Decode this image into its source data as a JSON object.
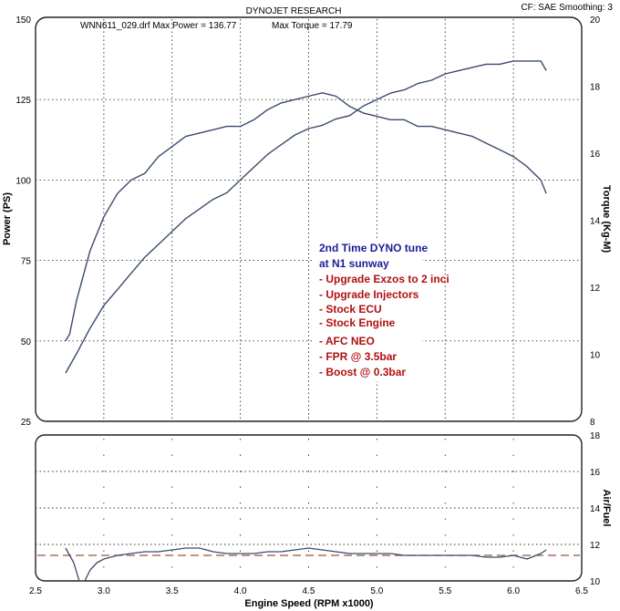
{
  "header": {
    "title": "DYNOJET RESEARCH",
    "cf": "CF: SAE  Smoothing: 3",
    "file_info": "WNN611_029.drf Max Power = 136.77",
    "torque_info": "Max Torque = 17.79"
  },
  "annotation": {
    "lines": [
      {
        "text": "2nd Time DYNO tune",
        "color": "#1c1c9a"
      },
      {
        "text": "at N1 sunway",
        "color": "#1c1c9a"
      },
      {
        "text": "- Upgrade Exzos to 2 inci",
        "color": "#b01010"
      },
      {
        "text": "- Upgrade Injectors",
        "color": "#b01010"
      },
      {
        "text": "- Stock ECU",
        "color": "#b01010"
      },
      {
        "text": "- Stock Engine",
        "color": "#b01010"
      },
      {
        "text": "- AFC NEO",
        "color": "#b01010"
      },
      {
        "text": "- FPR @ 3.5bar",
        "color": "#b01010"
      },
      {
        "text": "- Boost @ 0.3bar",
        "color": "#b01010"
      }
    ]
  },
  "chart_data": [
    {
      "type": "line",
      "x_label": "Engine Speed (RPM x1000)",
      "x_ticks": [
        "2.5",
        "3.0",
        "3.5",
        "4.0",
        "4.5",
        "5.0",
        "5.5",
        "6.0",
        "6.5"
      ],
      "xlim": [
        2.5,
        6.5
      ],
      "ylabel_left": "Power (PS)",
      "yticks_left": [
        "25",
        "50",
        "75",
        "100",
        "125",
        "150"
      ],
      "ylim_left": [
        25,
        150
      ],
      "ylabel_right": "Torque (Kg-M)",
      "yticks_right": [
        "8",
        "10",
        "12",
        "14",
        "16",
        "18",
        "20"
      ],
      "ylim_right": [
        8,
        20
      ],
      "grid": true,
      "line_color": "#3a4a6e",
      "series": [
        {
          "axis": "left",
          "x": [
            2.72,
            2.8,
            2.9,
            3.0,
            3.1,
            3.2,
            3.3,
            3.4,
            3.5,
            3.6,
            3.7,
            3.8,
            3.9,
            4.0,
            4.1,
            4.2,
            4.3,
            4.4,
            4.5,
            4.6,
            4.7,
            4.8,
            4.9,
            5.0,
            5.1,
            5.2,
            5.3,
            5.4,
            5.5,
            5.6,
            5.7,
            5.8,
            5.9,
            6.0,
            6.1,
            6.2,
            6.24
          ],
          "y": [
            40,
            46,
            54,
            61,
            66,
            71,
            76,
            80,
            84,
            88,
            91,
            94,
            96,
            100,
            104,
            108,
            111,
            114,
            116,
            117,
            119,
            120,
            123,
            125,
            127,
            128,
            130,
            131,
            133,
            134,
            135,
            136,
            136,
            137,
            137,
            137,
            134
          ]
        },
        {
          "axis": "right",
          "x": [
            2.72,
            2.75,
            2.8,
            2.9,
            3.0,
            3.1,
            3.2,
            3.3,
            3.4,
            3.5,
            3.6,
            3.7,
            3.8,
            3.9,
            4.0,
            4.1,
            4.2,
            4.3,
            4.4,
            4.5,
            4.6,
            4.7,
            4.8,
            4.9,
            5.0,
            5.1,
            5.2,
            5.3,
            5.4,
            5.5,
            5.6,
            5.7,
            5.8,
            5.9,
            6.0,
            6.1,
            6.2,
            6.24
          ],
          "y": [
            10.4,
            10.6,
            11.6,
            13.1,
            14.1,
            14.8,
            15.2,
            15.4,
            15.9,
            16.2,
            16.5,
            16.6,
            16.7,
            16.8,
            16.8,
            17.0,
            17.3,
            17.5,
            17.6,
            17.7,
            17.8,
            17.7,
            17.4,
            17.2,
            17.1,
            17.0,
            17.0,
            16.8,
            16.8,
            16.7,
            16.6,
            16.5,
            16.3,
            16.1,
            15.9,
            15.6,
            15.2,
            14.8
          ]
        }
      ]
    },
    {
      "type": "line",
      "x_label": "Engine Speed (RPM x1000)",
      "x_ticks": [
        "2.5",
        "3.0",
        "3.5",
        "4.0",
        "4.5",
        "5.0",
        "5.5",
        "6.0",
        "6.5"
      ],
      "xlim": [
        2.5,
        6.5
      ],
      "ylabel_right": "Air/Fuel",
      "yticks_right": [
        "10",
        "12",
        "14",
        "16",
        "18"
      ],
      "ylim_right": [
        10,
        18
      ],
      "grid": true,
      "reference_line": {
        "value": 11.4,
        "color": "#a0503a",
        "style": "dashed"
      },
      "series": [
        {
          "axis": "right",
          "x": [
            2.72,
            2.78,
            2.82,
            2.86,
            2.9,
            2.95,
            3.0,
            3.1,
            3.2,
            3.3,
            3.4,
            3.5,
            3.6,
            3.7,
            3.8,
            3.9,
            4.0,
            4.1,
            4.2,
            4.3,
            4.4,
            4.5,
            4.6,
            4.7,
            4.8,
            4.9,
            5.0,
            5.1,
            5.2,
            5.3,
            5.4,
            5.5,
            5.6,
            5.7,
            5.8,
            5.9,
            6.0,
            6.1,
            6.2,
            6.24
          ],
          "y": [
            11.8,
            11.0,
            10.0,
            10.0,
            10.6,
            11.0,
            11.2,
            11.4,
            11.5,
            11.6,
            11.6,
            11.7,
            11.8,
            11.8,
            11.6,
            11.5,
            11.5,
            11.5,
            11.6,
            11.6,
            11.7,
            11.8,
            11.7,
            11.6,
            11.5,
            11.5,
            11.5,
            11.5,
            11.4,
            11.4,
            11.4,
            11.4,
            11.4,
            11.4,
            11.3,
            11.3,
            11.4,
            11.2,
            11.5,
            11.7
          ]
        }
      ]
    }
  ]
}
